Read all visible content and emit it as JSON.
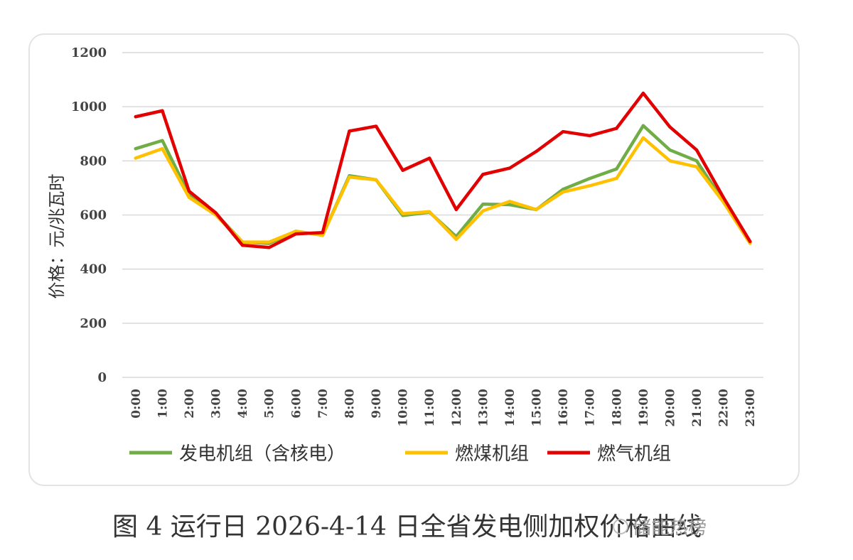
{
  "caption": "图 4 运行日 2026-4-14 日全省发电侧加权价格曲线",
  "watermark": {
    "icon": "wechat-icon",
    "text": "储能热榜"
  },
  "chart_data": {
    "type": "line",
    "title": "",
    "xlabel": "",
    "ylabel": "价格：元/兆瓦时",
    "ylim": [
      0,
      1200
    ],
    "yticks": [
      0,
      200,
      400,
      600,
      800,
      1000,
      1200
    ],
    "grid": true,
    "legend_position": "bottom",
    "categories": [
      "0:00",
      "1:00",
      "2:00",
      "3:00",
      "4:00",
      "5:00",
      "6:00",
      "7:00",
      "8:00",
      "9:00",
      "10:00",
      "11:00",
      "12:00",
      "13:00",
      "14:00",
      "15:00",
      "16:00",
      "17:00",
      "18:00",
      "19:00",
      "20:00",
      "21:00",
      "22:00",
      "23:00"
    ],
    "series": [
      {
        "name": "发电机组（含核电）",
        "color": "#70ad47",
        "values": [
          845,
          875,
          675,
          605,
          500,
          495,
          540,
          525,
          745,
          730,
          598,
          610,
          520,
          640,
          638,
          620,
          695,
          735,
          770,
          930,
          840,
          800,
          650,
          500
        ]
      },
      {
        "name": "燃煤机组",
        "color": "#ffc000",
        "values": [
          810,
          845,
          665,
          600,
          500,
          500,
          540,
          525,
          740,
          730,
          605,
          612,
          510,
          615,
          650,
          620,
          685,
          708,
          735,
          885,
          800,
          778,
          648,
          495
        ]
      },
      {
        "name": "燃气机组",
        "color": "#e30000",
        "values": [
          963,
          985,
          688,
          608,
          488,
          480,
          530,
          535,
          910,
          928,
          765,
          810,
          620,
          750,
          773,
          835,
          908,
          893,
          920,
          1050,
          925,
          840,
          665,
          502
        ]
      }
    ]
  }
}
